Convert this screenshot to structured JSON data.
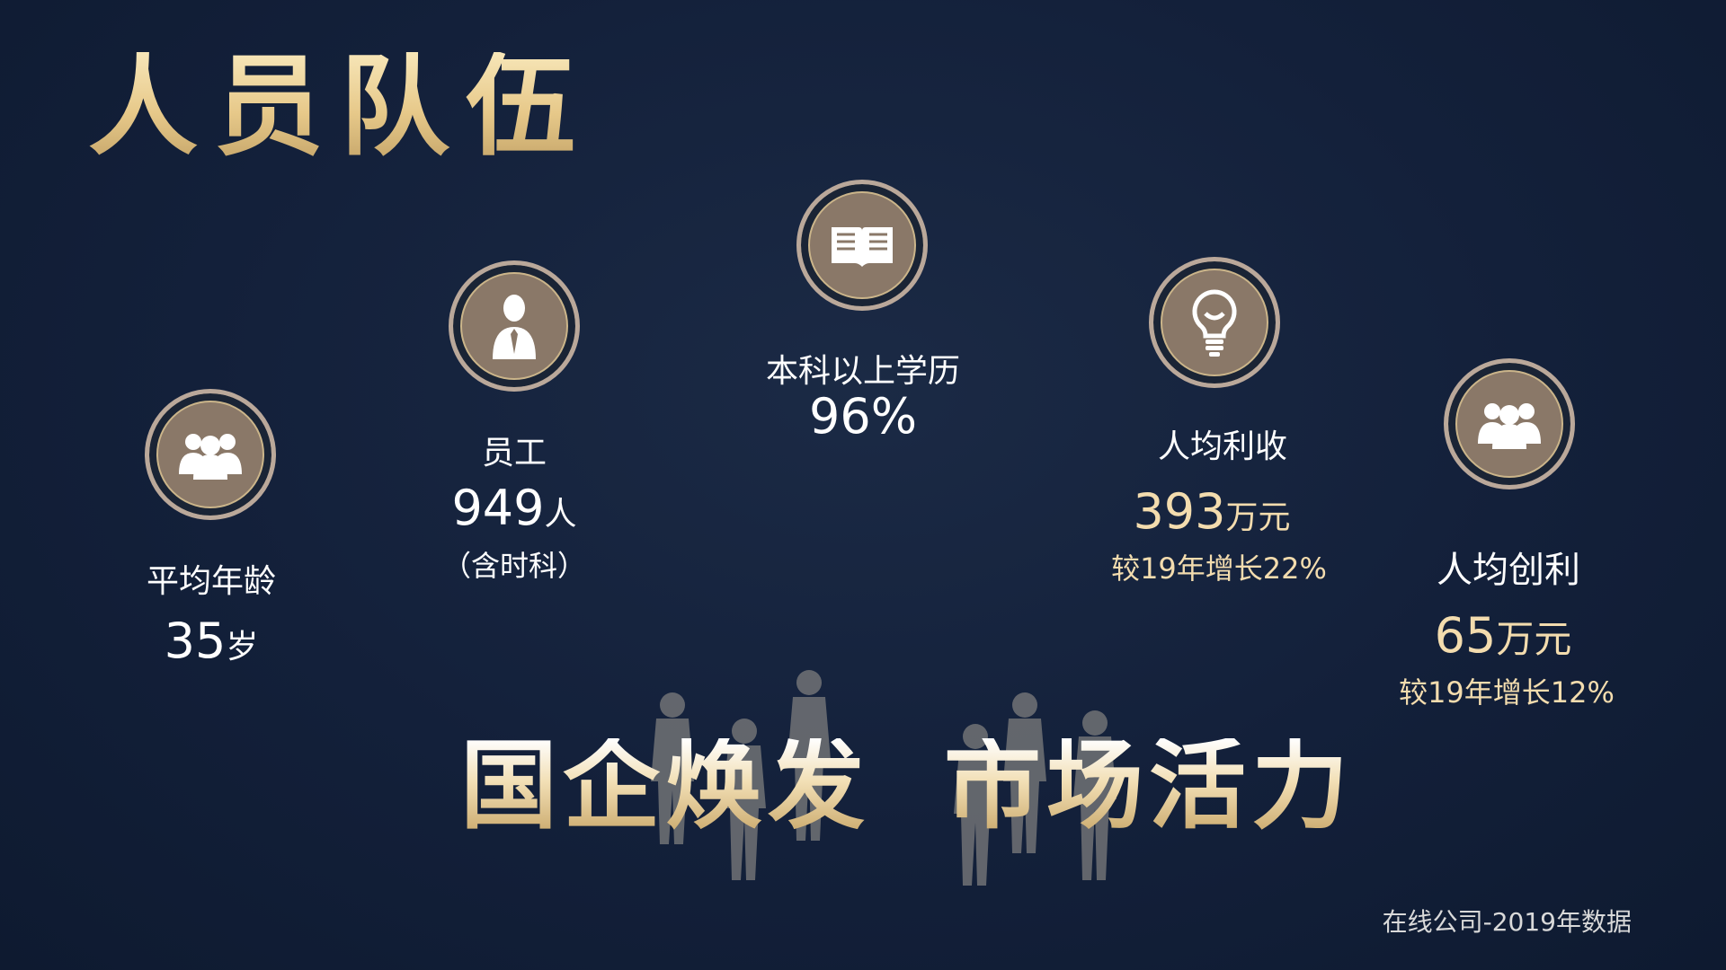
{
  "title": "人员队伍",
  "stats": {
    "avg_age": {
      "label": "平均年龄",
      "value": "35",
      "unit": "岁",
      "icon": "group-people-icon"
    },
    "employees": {
      "label": "员工",
      "value": "949",
      "unit": "人",
      "note": "（含时科）",
      "icon": "businessman-icon"
    },
    "education": {
      "label": "本科以上学历",
      "value": "96",
      "unit": "%",
      "icon": "open-book-icon"
    },
    "revenue_per_capita": {
      "label": "人均利收",
      "value": "393",
      "unit": "万元",
      "growth": "较19年增长22%",
      "icon": "lightbulb-icon"
    },
    "profit_per_capita": {
      "label": "人均创利",
      "value": "65",
      "unit": "万元",
      "growth": "较19年增长12%",
      "icon": "group-people-icon"
    }
  },
  "slogan": {
    "left": "国企焕发",
    "right": "市场活力"
  },
  "footnote": "在线公司-2019年数据"
}
